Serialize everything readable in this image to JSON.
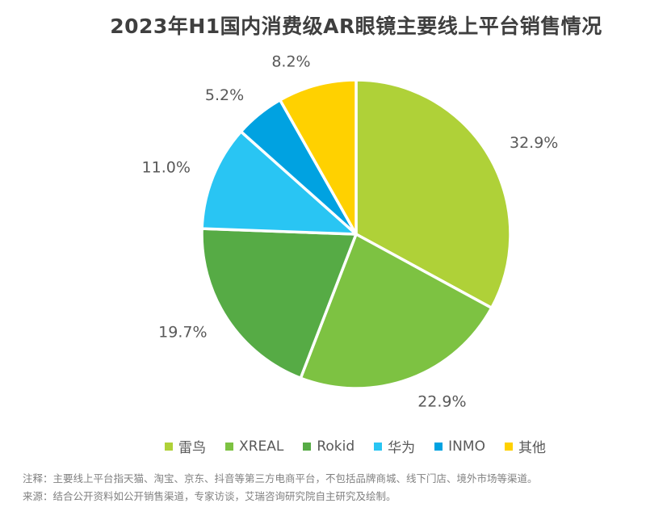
{
  "title": "2023年H1国内消费级AR眼镜主要线上平台销售情况",
  "chart_data": {
    "type": "pie",
    "title": "2023年H1国内消费级AR眼镜主要线上平台销售情况",
    "series": [
      {
        "label": "雷鸟",
        "value": 32.9,
        "display": "32.9%",
        "color": "#AFD138"
      },
      {
        "label": "XREAL",
        "value": 22.9,
        "display": "22.9%",
        "color": "#7DC242"
      },
      {
        "label": "Rokid",
        "value": 19.7,
        "display": "19.7%",
        "color": "#56AB45"
      },
      {
        "label": "华为",
        "value": 11.0,
        "display": "11.0%",
        "color": "#29C5F3"
      },
      {
        "label": "INMO",
        "value": 5.2,
        "display": "5.2%",
        "color": "#00A2E1"
      },
      {
        "label": "其他",
        "value": 8.2,
        "display": "8.2%",
        "color": "#FFD100"
      }
    ],
    "start_angle_deg": 0,
    "direction": "clockwise",
    "legend_position": "bottom",
    "label_color": "#595959",
    "slice_gap_color": "#ffffff"
  },
  "footnotes": {
    "note": "注释：主要线上平台指天猫、淘宝、京东、抖音等第三方电商平台，不包括品牌商城、线下门店、境外市场等渠道。",
    "source": "来源：结合公开资料如公开销售渠道，专家访谈，艾瑞咨询研究院自主研究及绘制。"
  }
}
